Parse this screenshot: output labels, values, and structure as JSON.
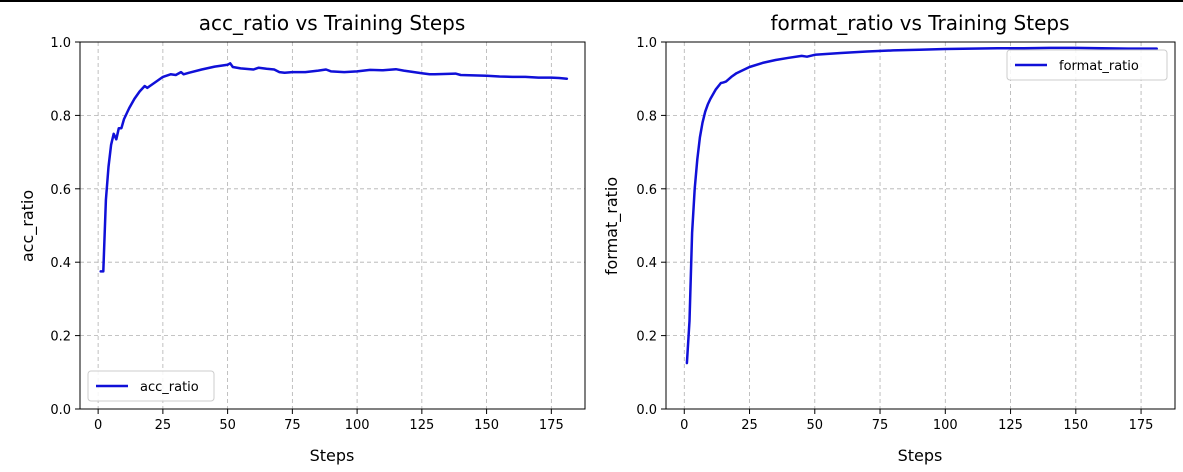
{
  "figure": {
    "line_color": "#1010d8"
  },
  "chart_data": [
    {
      "type": "line",
      "title": "acc_ratio vs Training Steps",
      "xlabel": "Steps",
      "ylabel": "acc_ratio",
      "xlim": [
        -7,
        188
      ],
      "ylim": [
        0.0,
        1.0
      ],
      "xticks": [
        0,
        25,
        50,
        75,
        100,
        125,
        150,
        175
      ],
      "yticks": [
        0.0,
        0.2,
        0.4,
        0.6,
        0.8,
        1.0
      ],
      "ytick_labels": [
        "0.0",
        "0.2",
        "0.4",
        "0.6",
        "0.8",
        "1.0"
      ],
      "grid": true,
      "legend_position": "lower-left",
      "series": [
        {
          "name": "acc_ratio",
          "color": "#1010d8",
          "x": [
            1,
            2,
            3,
            4,
            5,
            6,
            7,
            8,
            9,
            10,
            12,
            14,
            16,
            18,
            19,
            20,
            22,
            25,
            28,
            30,
            32,
            33,
            35,
            40,
            45,
            50,
            51,
            52,
            55,
            60,
            62,
            65,
            68,
            70,
            72,
            75,
            80,
            85,
            88,
            90,
            95,
            100,
            105,
            110,
            115,
            118,
            120,
            125,
            128,
            130,
            135,
            138,
            140,
            145,
            150,
            155,
            160,
            165,
            170,
            175,
            178,
            181
          ],
          "y": [
            0.375,
            0.375,
            0.57,
            0.66,
            0.72,
            0.75,
            0.735,
            0.765,
            0.765,
            0.79,
            0.82,
            0.845,
            0.865,
            0.88,
            0.875,
            0.88,
            0.89,
            0.905,
            0.912,
            0.91,
            0.918,
            0.912,
            0.916,
            0.925,
            0.933,
            0.938,
            0.942,
            0.932,
            0.928,
            0.925,
            0.93,
            0.927,
            0.925,
            0.918,
            0.916,
            0.918,
            0.918,
            0.922,
            0.925,
            0.92,
            0.918,
            0.92,
            0.924,
            0.923,
            0.926,
            0.922,
            0.92,
            0.915,
            0.912,
            0.912,
            0.913,
            0.914,
            0.91,
            0.909,
            0.908,
            0.906,
            0.905,
            0.905,
            0.903,
            0.903,
            0.902,
            0.9
          ]
        }
      ]
    },
    {
      "type": "line",
      "title": "format_ratio vs Training Steps",
      "xlabel": "Steps",
      "ylabel": "format_ratio",
      "xlim": [
        -7,
        188
      ],
      "ylim": [
        0.0,
        1.0
      ],
      "xticks": [
        0,
        25,
        50,
        75,
        100,
        125,
        150,
        175
      ],
      "yticks": [
        0.0,
        0.2,
        0.4,
        0.6,
        0.8,
        1.0
      ],
      "ytick_labels": [
        "0.0",
        "0.2",
        "0.4",
        "0.6",
        "0.8",
        "1.0"
      ],
      "grid": true,
      "legend_position": "top-right",
      "series": [
        {
          "name": "format_ratio",
          "color": "#1010d8",
          "x": [
            1,
            2,
            3,
            4,
            5,
            6,
            7,
            8,
            9,
            10,
            12,
            14,
            15,
            16,
            18,
            20,
            25,
            30,
            35,
            40,
            45,
            47,
            50,
            60,
            70,
            80,
            90,
            100,
            110,
            120,
            130,
            140,
            150,
            160,
            170,
            181
          ],
          "y": [
            0.125,
            0.24,
            0.48,
            0.6,
            0.68,
            0.74,
            0.78,
            0.81,
            0.83,
            0.845,
            0.87,
            0.888,
            0.89,
            0.892,
            0.905,
            0.915,
            0.932,
            0.943,
            0.951,
            0.957,
            0.962,
            0.96,
            0.965,
            0.97,
            0.974,
            0.977,
            0.979,
            0.981,
            0.982,
            0.983,
            0.983,
            0.984,
            0.984,
            0.983,
            0.982,
            0.982
          ]
        }
      ]
    }
  ]
}
